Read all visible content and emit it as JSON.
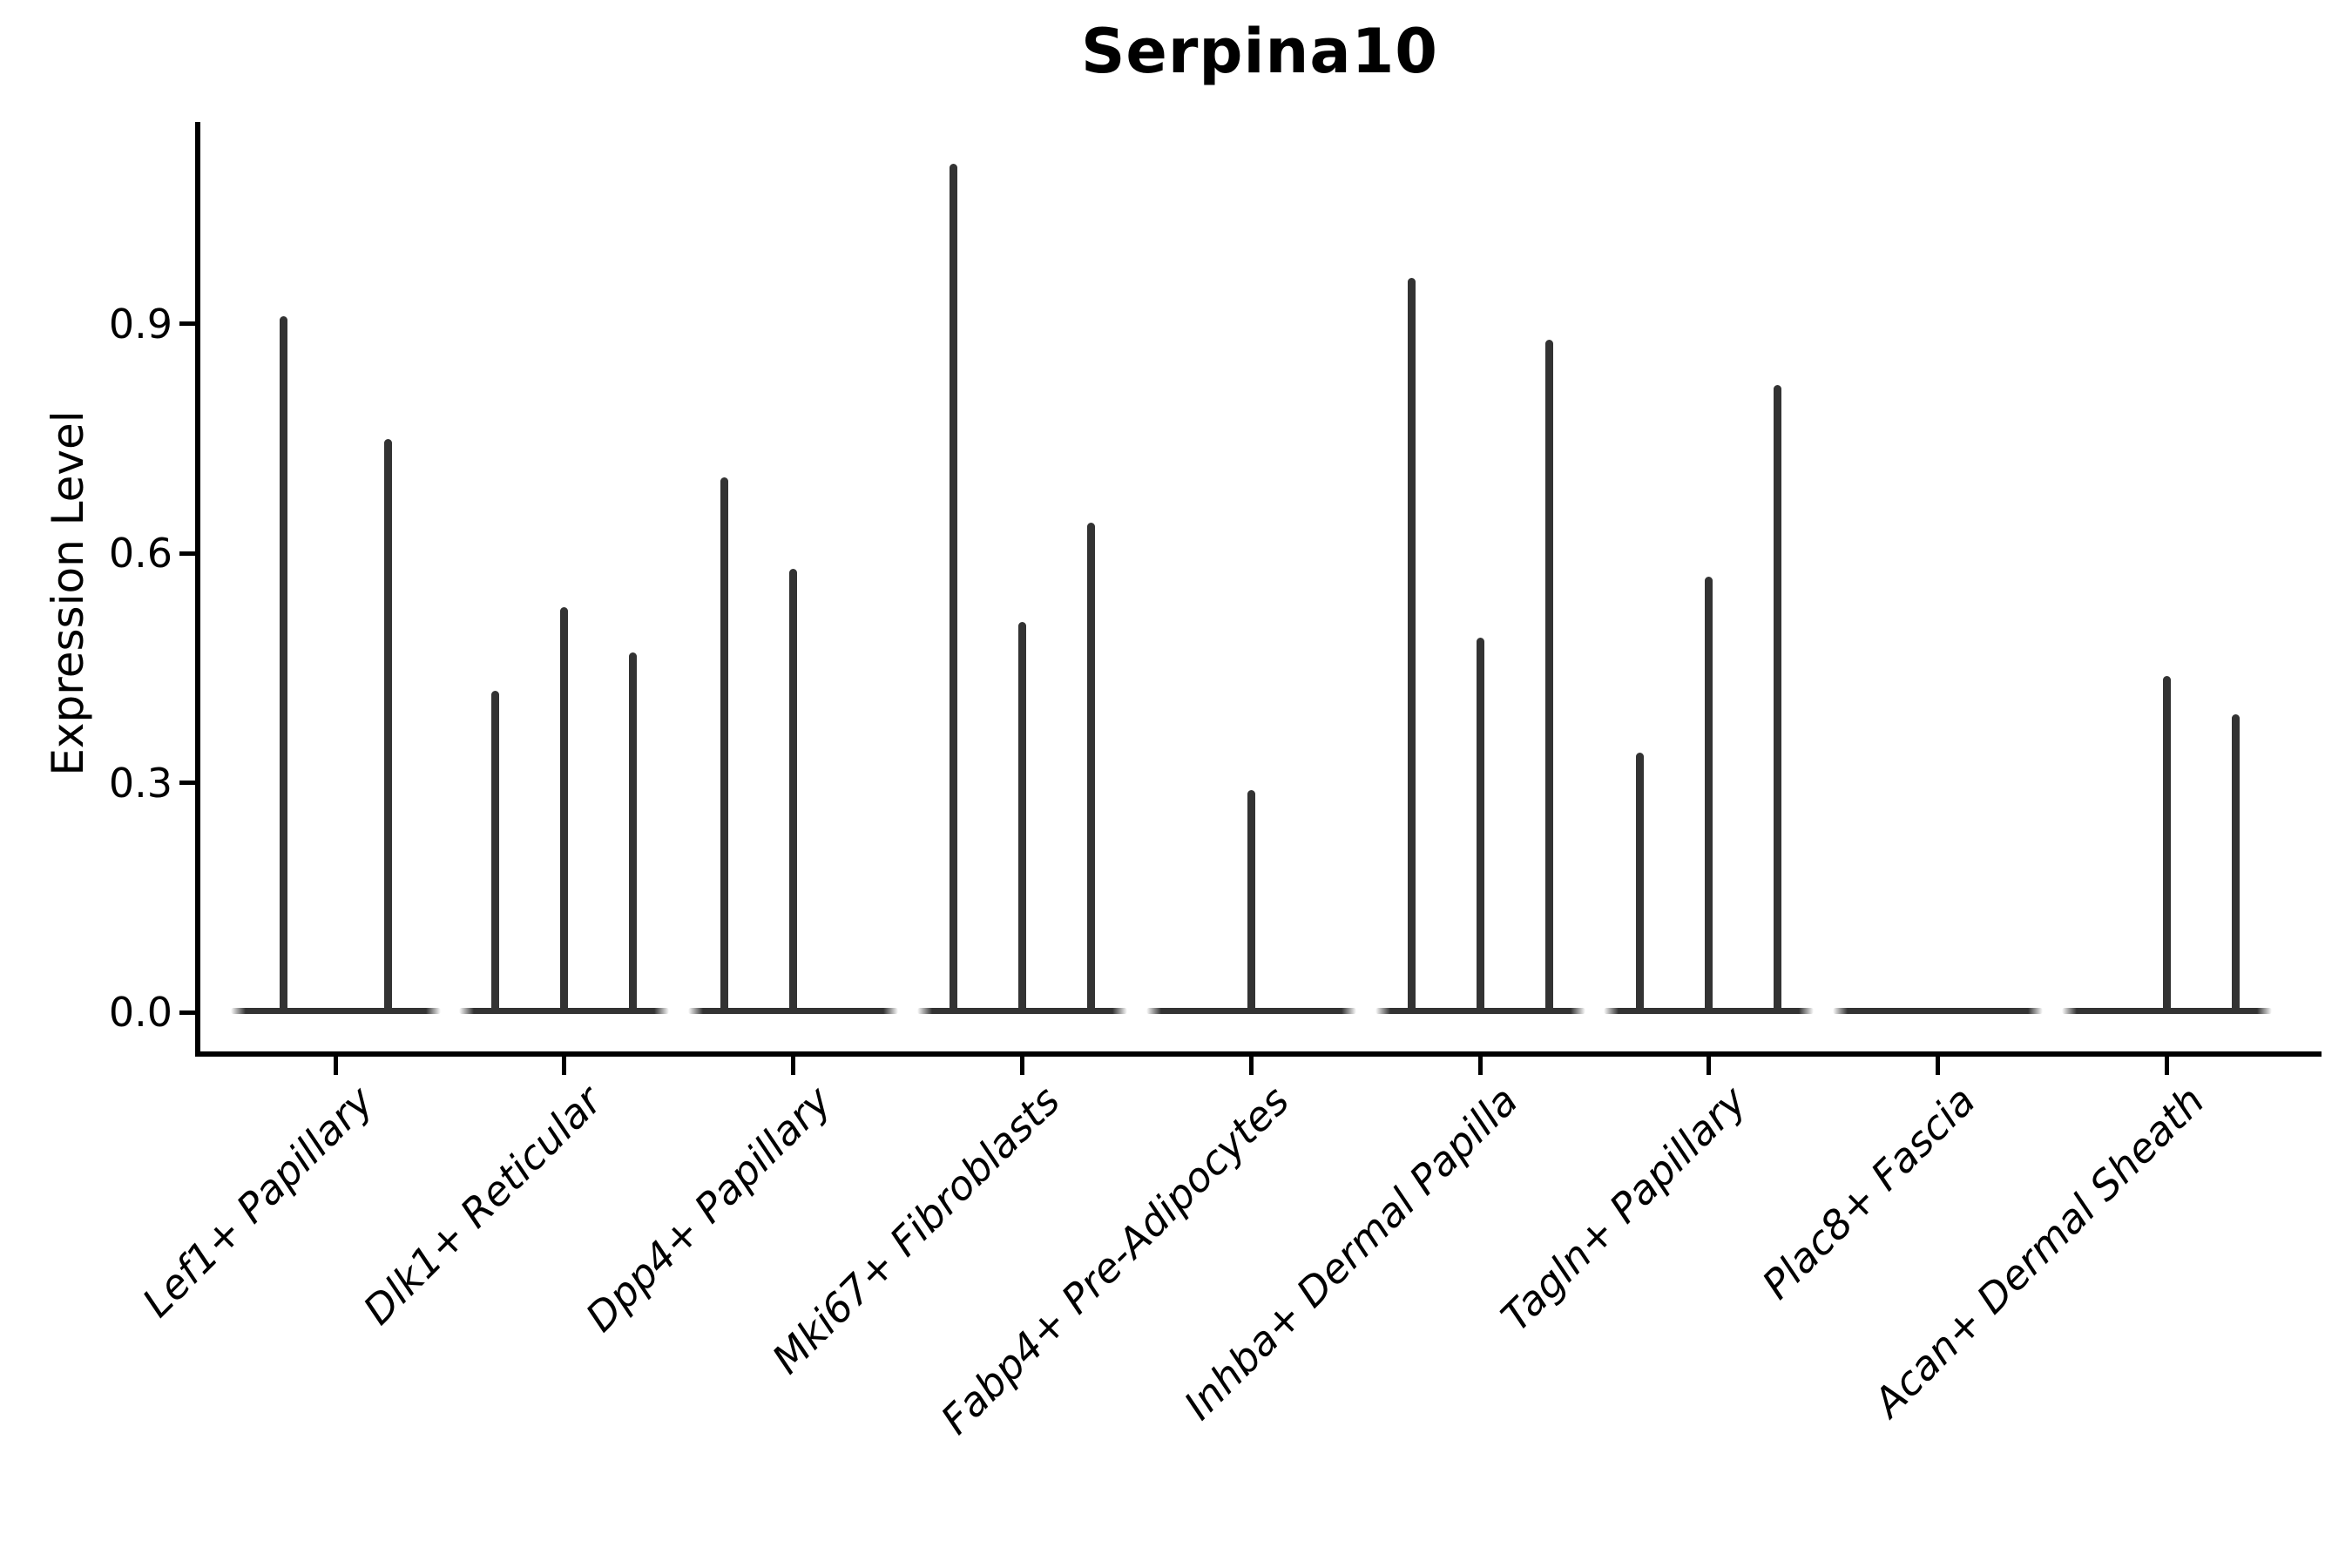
{
  "title": "Serpina10",
  "y_axis": {
    "label": "Expression Level",
    "ticks": [
      {
        "label": "0.0",
        "value": 0.0
      },
      {
        "label": "0.3",
        "value": 0.3
      },
      {
        "label": "0.6",
        "value": 0.6
      },
      {
        "label": "0.9",
        "value": 0.9
      }
    ]
  },
  "chart_data": {
    "type": "violin",
    "title": "Serpina10",
    "xlabel": "",
    "ylabel": "Expression Level",
    "ylim": [
      -0.055,
      1.16
    ],
    "y_ticks": [
      0.0,
      0.3,
      0.6,
      0.9
    ],
    "grid": false,
    "legend": false,
    "violin_color": "#333333",
    "style_note": "sparse single-cell expression: each violin collapses to a flat base at 0 with a thin vertical density spike; spike value = top of violin (max expression)",
    "categories": [
      "Lef1+ Papillary",
      "Dlk1+ Reticular",
      "Dpp4+ Papillary",
      "Mki67+ Fibroblasts",
      "Fabp4+ Pre-Adipocytes",
      "Inhba+ Dermal Papilla",
      "Tagln+ Papillary",
      "Plac8+ Fascia",
      "Acan+ Dermal Sheath"
    ],
    "groups": [
      {
        "label": "Lef1+ Papillary",
        "spikes": [
          {
            "dx": -60,
            "max": 0.91
          },
          {
            "dx": 60,
            "max": 0.75
          }
        ]
      },
      {
        "label": "Dlk1+ Reticular",
        "spikes": [
          {
            "dx": -79,
            "max": 0.42
          },
          {
            "dx": 0,
            "max": 0.53
          },
          {
            "dx": 79,
            "max": 0.47
          }
        ]
      },
      {
        "label": "Dpp4+ Papillary",
        "spikes": [
          {
            "dx": -79,
            "max": 0.7
          },
          {
            "dx": 0,
            "max": 0.58
          }
        ]
      },
      {
        "label": "Mki67+ Fibroblasts",
        "spikes": [
          {
            "dx": -79,
            "max": 1.11
          },
          {
            "dx": 0,
            "max": 0.51
          },
          {
            "dx": 79,
            "max": 0.64
          }
        ]
      },
      {
        "label": "Fabp4+ Pre-Adipocytes",
        "spikes": [
          {
            "dx": 0,
            "max": 0.29
          }
        ]
      },
      {
        "label": "Inhba+ Dermal Papilla",
        "spikes": [
          {
            "dx": -79,
            "max": 0.96
          },
          {
            "dx": 0,
            "max": 0.49
          },
          {
            "dx": 79,
            "max": 0.88
          }
        ]
      },
      {
        "label": "Tagln+ Papillary",
        "spikes": [
          {
            "dx": -79,
            "max": 0.34
          },
          {
            "dx": 0,
            "max": 0.57
          },
          {
            "dx": 79,
            "max": 0.82
          }
        ]
      },
      {
        "label": "Plac8+ Fascia",
        "spikes": []
      },
      {
        "label": "Acan+ Dermal Sheath",
        "spikes": [
          {
            "dx": 0,
            "max": 0.44
          },
          {
            "dx": 79,
            "max": 0.39
          }
        ]
      }
    ]
  }
}
